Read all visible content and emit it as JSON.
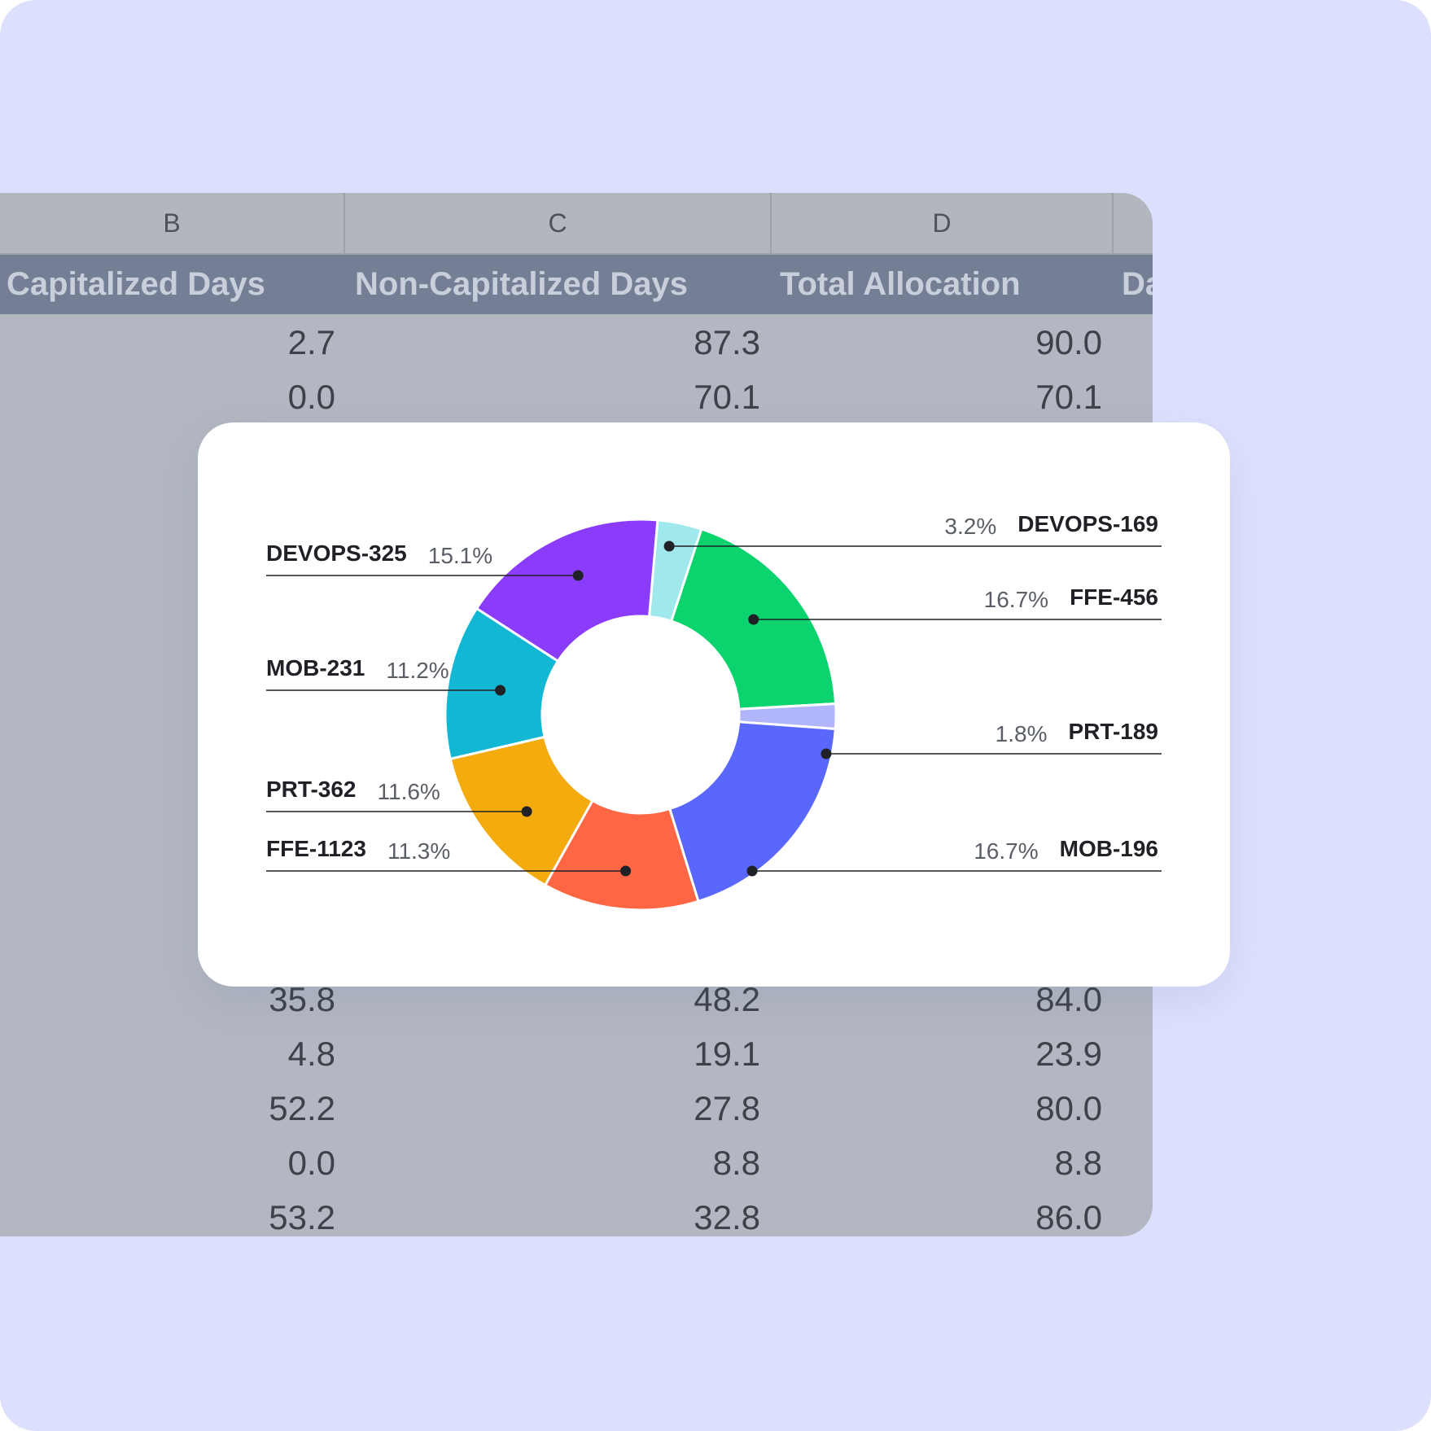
{
  "spreadsheet": {
    "column_letters": [
      "B",
      "C",
      "D"
    ],
    "headers": [
      "Capitalized Days",
      "Non-Capitalized Days",
      "Total Allocation",
      "Da"
    ],
    "rows_top": [
      [
        "2.7",
        "87.3",
        "90.0"
      ],
      [
        "0.0",
        "70.1",
        "70.1"
      ]
    ],
    "rows_bottom": [
      [
        "35.8",
        "48.2",
        "84.0"
      ],
      [
        "4.8",
        "19.1",
        "23.9"
      ],
      [
        "52.2",
        "27.8",
        "80.0"
      ],
      [
        "0.0",
        "8.8",
        "8.8"
      ],
      [
        "53.2",
        "32.8",
        "86.0"
      ]
    ]
  },
  "chart_data": {
    "type": "pie",
    "donut": true,
    "slices": [
      {
        "label": "DEVOPS-169",
        "percent_label": "3.2%",
        "value": 3.2,
        "color": "#9fe8ec"
      },
      {
        "label": "FFE-456",
        "percent_label": "16.7%",
        "value": 16.7,
        "color": "#0bd46f"
      },
      {
        "label": "PRT-189",
        "percent_label": "1.8%",
        "value": 1.8,
        "color": "#b1b6fb"
      },
      {
        "label": "MOB-196",
        "percent_label": "16.7%",
        "value": 16.7,
        "color": "#5a67fc"
      },
      {
        "label": "FFE-1123",
        "percent_label": "11.3%",
        "value": 11.3,
        "color": "#ff6644"
      },
      {
        "label": "PRT-362",
        "percent_label": "11.6%",
        "value": 11.6,
        "color": "#f4ab0e"
      },
      {
        "label": "MOB-231",
        "percent_label": "11.2%",
        "value": 11.2,
        "color": "#12b8d3"
      },
      {
        "label": "DEVOPS-325",
        "percent_label": "15.1%",
        "value": 15.1,
        "color": "#8b3cfb"
      }
    ]
  }
}
